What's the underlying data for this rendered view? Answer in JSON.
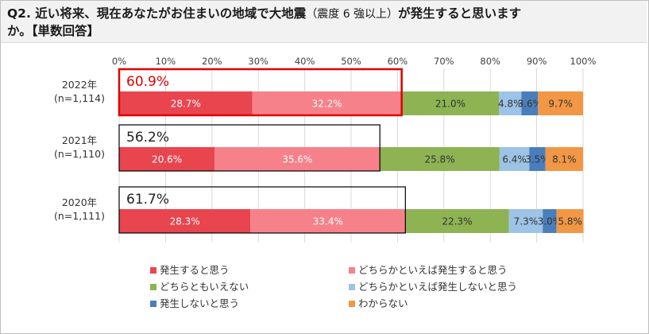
{
  "title": {
    "part1": "Q2. 近い将来、現在あなたがお住まいの地域で大地震",
    "part2": "（震度 6 強以上）",
    "part3": "が発生すると思います",
    "line2": "か。【単数回答】"
  },
  "chart_data": {
    "type": "stacked-bar-horizontal",
    "xlim": [
      0,
      100
    ],
    "xticks": [
      "0%",
      "10%",
      "20%",
      "30%",
      "40%",
      "50%",
      "60%",
      "70%",
      "80%",
      "90%",
      "100%"
    ],
    "categories": [
      {
        "year": "2022年",
        "n": "(n=1,114)",
        "total_label": "60.9%",
        "highlight": true
      },
      {
        "year": "2021年",
        "n": "(n=1,110)",
        "total_label": "56.2%",
        "highlight": false
      },
      {
        "year": "2020年",
        "n": "(n=1,111)",
        "total_label": "61.7%",
        "highlight": false
      }
    ],
    "series": [
      {
        "name": "発生すると思う",
        "color": "#e8454f",
        "text_color": "#ffffff",
        "values": [
          28.7,
          20.6,
          28.3
        ],
        "labels": [
          "28.7%",
          "20.6%",
          "28.3%"
        ]
      },
      {
        "name": "どちらかといえば発生すると思う",
        "color": "#f6818a",
        "text_color": "#ffffff",
        "values": [
          32.2,
          35.6,
          33.4
        ],
        "labels": [
          "32.2%",
          "35.6%",
          "33.4%"
        ]
      },
      {
        "name": "どちらともいえない",
        "color": "#8db353",
        "text_color": "#333333",
        "values": [
          21.0,
          25.8,
          22.3
        ],
        "labels": [
          "21.0%",
          "25.8%",
          "22.3%"
        ]
      },
      {
        "name": "どちらかといえば発生しないと思う",
        "color": "#9dc3e6",
        "text_color": "#333333",
        "values": [
          4.8,
          6.4,
          7.3
        ],
        "labels": [
          "4.8%",
          "6.4%",
          "7.3%"
        ]
      },
      {
        "name": "発生しないと思う",
        "color": "#4a7ebb",
        "text_color": "#333333",
        "values": [
          3.6,
          3.5,
          3.0
        ],
        "labels": [
          "3.6%",
          "3.5%",
          "3.0%"
        ]
      },
      {
        "name": "わからない",
        "color": "#f29745",
        "text_color": "#333333",
        "values": [
          9.7,
          8.1,
          5.8
        ],
        "labels": [
          "9.7%",
          "8.1%",
          "5.8%"
        ]
      }
    ],
    "highlight_color": "#e00000"
  }
}
